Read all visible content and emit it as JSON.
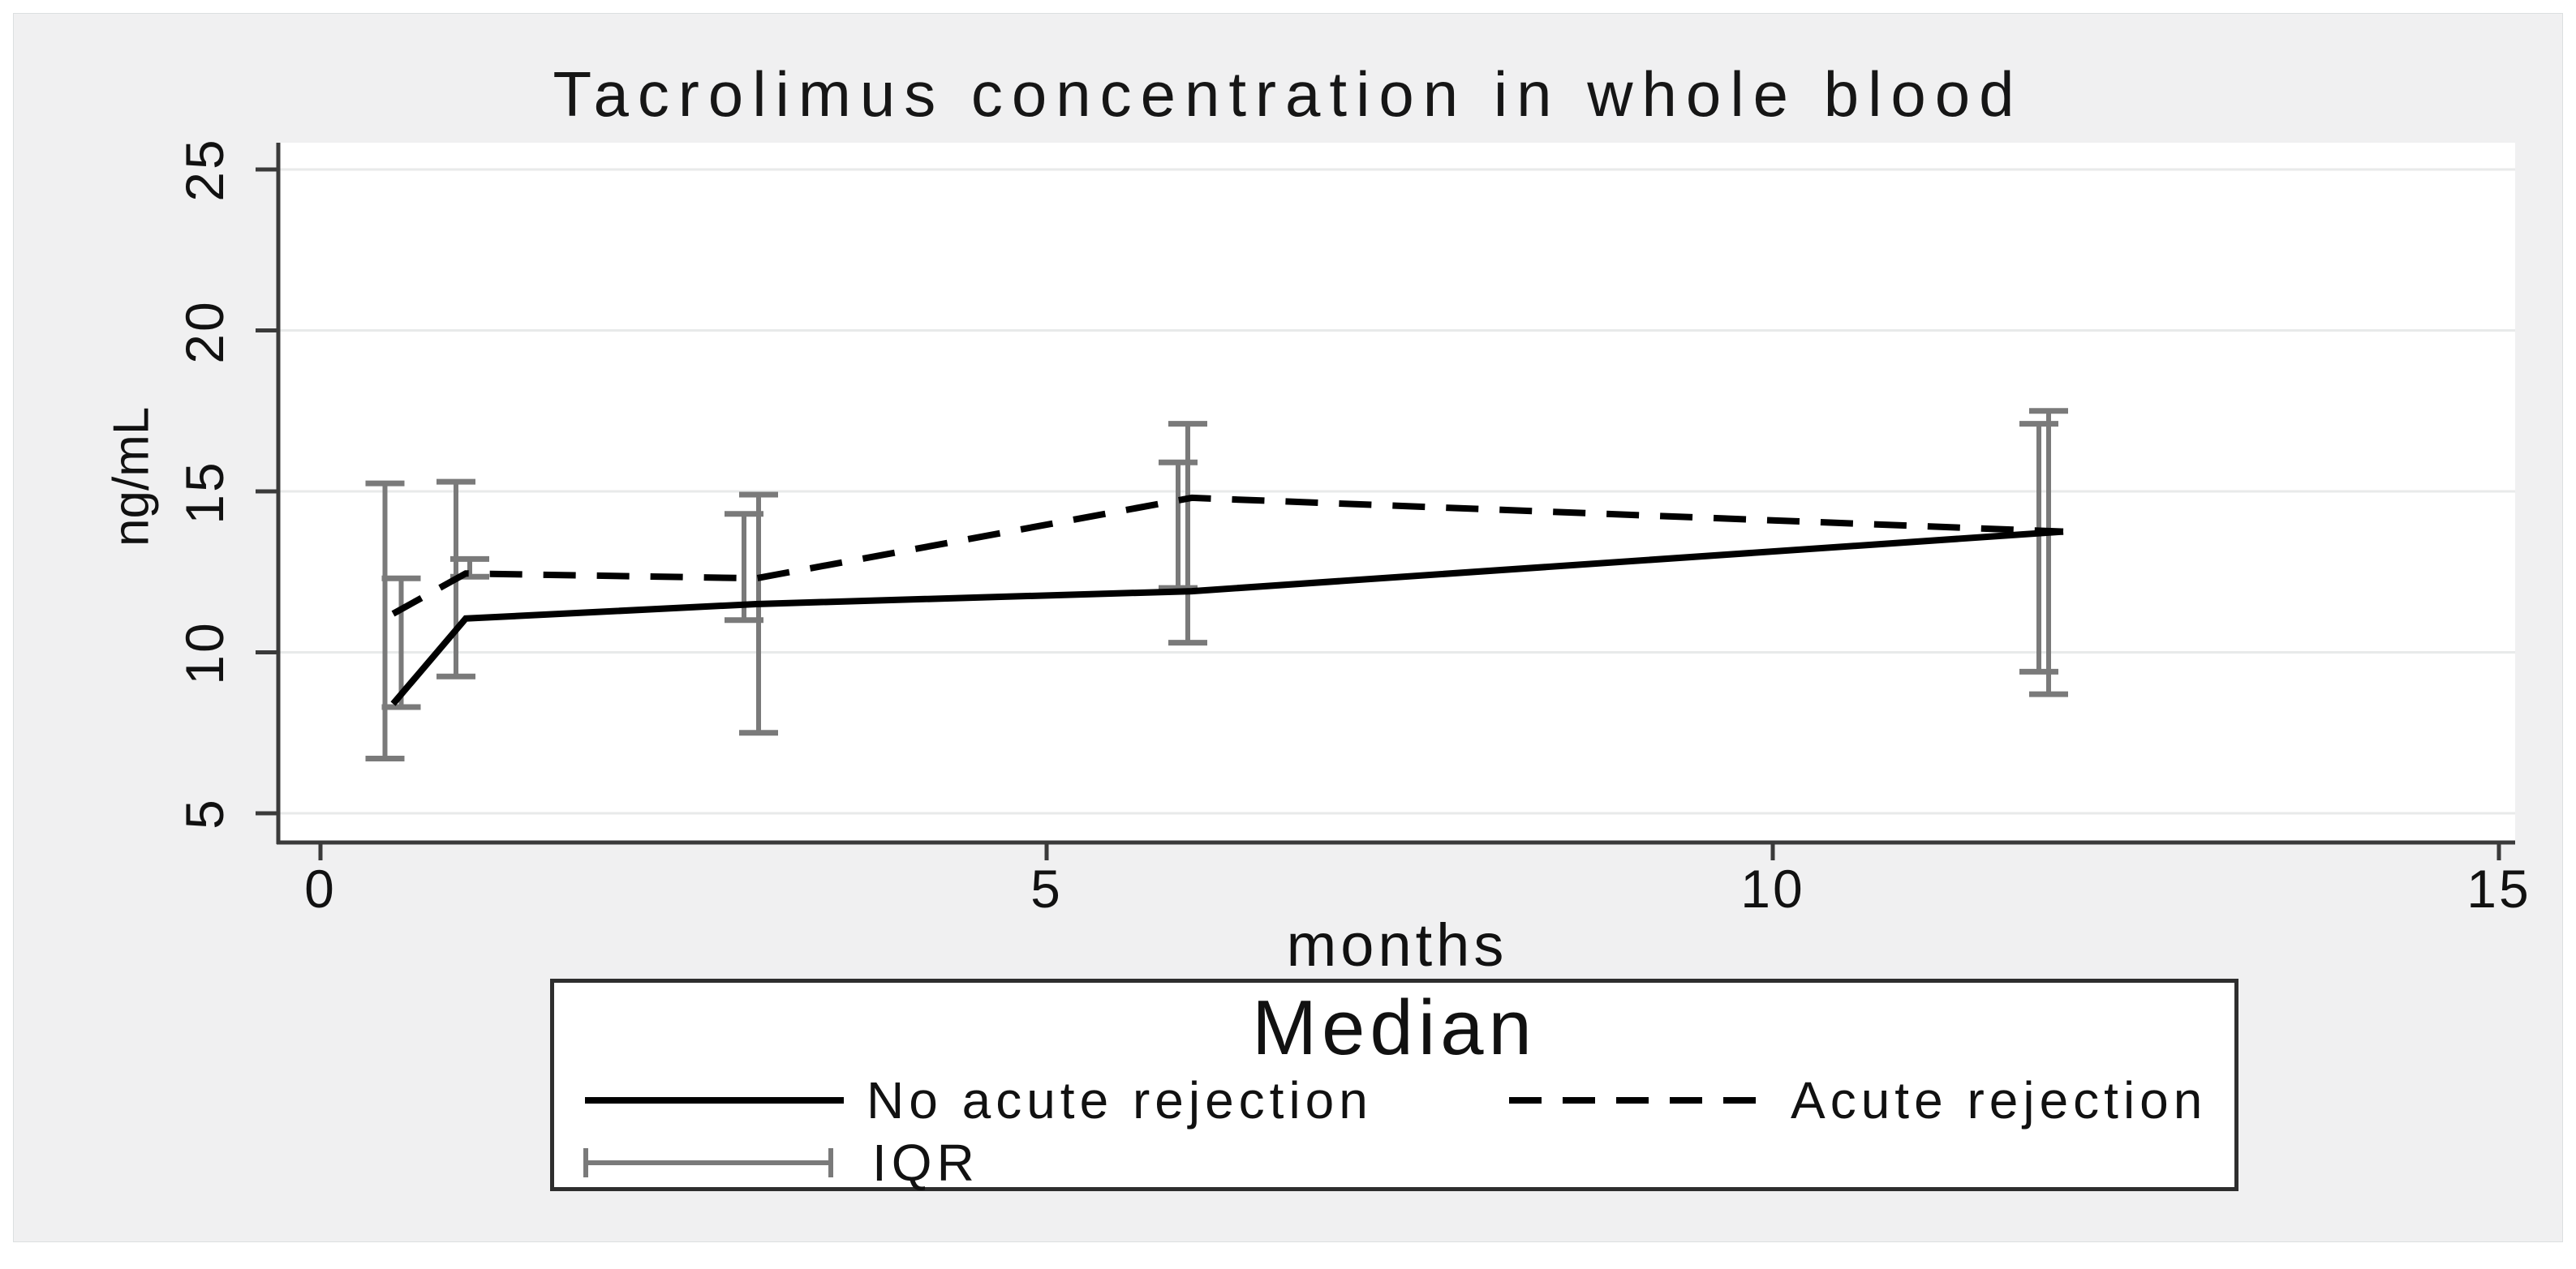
{
  "figure": {
    "background_color": "#f0f0f1",
    "plot_background": "#ffffff",
    "axis_color": "#3a3a3a",
    "grid_color": "#e8eaea",
    "median_line_color": "#000000",
    "iqr_color": "#7a7a7a"
  },
  "chart_data": {
    "type": "line",
    "title": "Tacrolimus concentration in whole blood",
    "xlabel": "months",
    "ylabel": "ng/mL",
    "xlim": [
      0,
      15
    ],
    "ylim": [
      5,
      25
    ],
    "grid": "horizontal",
    "x_ticks": [
      0,
      5,
      10,
      15
    ],
    "x_tick_labels": [
      "0",
      "5",
      "10",
      "15"
    ],
    "y_ticks": [
      25,
      20,
      15,
      10,
      5
    ],
    "y_tick_labels": [
      "25",
      "20",
      "15",
      "10",
      "5"
    ],
    "x": [
      0.5,
      1,
      3,
      6,
      12
    ],
    "series": [
      {
        "name": "No acute rejection",
        "style": "solid",
        "values": [
          8.4,
          11.05,
          11.5,
          11.9,
          13.75
        ]
      },
      {
        "name": "Acute rejection",
        "style": "dashed",
        "values": [
          11.2,
          12.45,
          12.3,
          14.8,
          13.75
        ]
      }
    ],
    "iqr_bars": [
      {
        "series": "No acute rejection",
        "month": 0.5,
        "q1": 6.7,
        "q3": 15.25,
        "dx": -10
      },
      {
        "series": "Acute rejection",
        "month": 0.5,
        "q1": 8.3,
        "q3": 12.3,
        "dx": 10
      },
      {
        "series": "No acute rejection",
        "month": 1,
        "q1": 9.25,
        "q3": 15.3,
        "dx": -12
      },
      {
        "series": "Acute rejection",
        "month": 1,
        "q1": 12.35,
        "q3": 12.9,
        "dx": 5
      },
      {
        "series": "Acute rejection",
        "month": 3,
        "q1": 11.0,
        "q3": 14.3,
        "dx": -15
      },
      {
        "series": "No acute rejection",
        "month": 3,
        "q1": 7.5,
        "q3": 14.9,
        "dx": 3
      },
      {
        "series": "Acute rejection",
        "month": 6,
        "q1": 12.0,
        "q3": 15.9,
        "dx": -17
      },
      {
        "series": "No acute rejection",
        "month": 6,
        "q1": 10.3,
        "q3": 17.1,
        "dx": -5
      },
      {
        "series": "Acute rejection",
        "month": 12,
        "q1": 9.4,
        "q3": 17.1,
        "dx": -30
      },
      {
        "series": "No acute rejection",
        "month": 12,
        "q1": 8.7,
        "q3": 17.5,
        "dx": -18
      }
    ],
    "legend": {
      "position": "bottom",
      "title": "Median",
      "entries": [
        {
          "label": "No acute rejection",
          "style": "solid"
        },
        {
          "label": "Acute rejection",
          "style": "dashed"
        },
        {
          "label": "IQR",
          "style": "iqr"
        }
      ]
    }
  }
}
